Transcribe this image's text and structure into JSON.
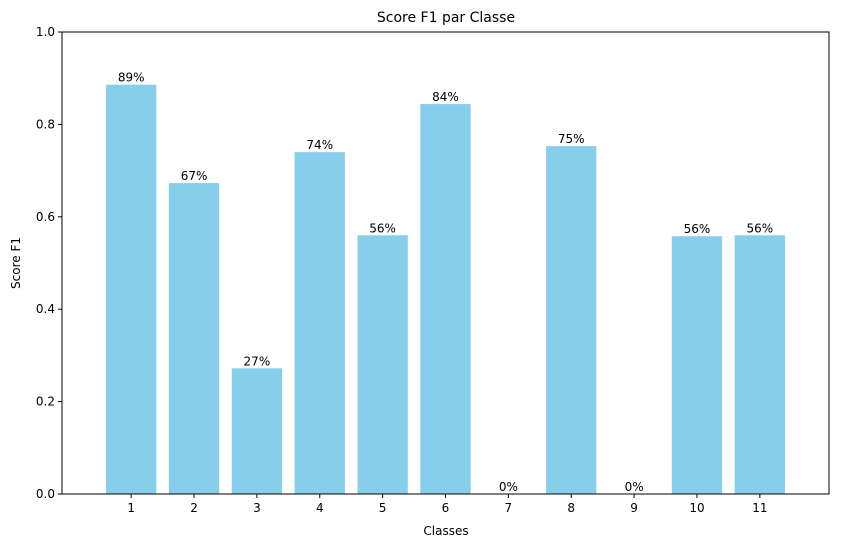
{
  "chart_data": {
    "type": "bar",
    "title": "Score F1 par Classe",
    "xlabel": "Classes",
    "ylabel": "Score F1",
    "categories": [
      "1",
      "2",
      "3",
      "4",
      "5",
      "6",
      "7",
      "8",
      "9",
      "10",
      "11"
    ],
    "values": [
      0.886,
      0.673,
      0.272,
      0.74,
      0.56,
      0.844,
      0.0,
      0.753,
      0.0,
      0.558,
      0.56
    ],
    "data_labels": [
      "89%",
      "67%",
      "27%",
      "74%",
      "56%",
      "84%",
      "0%",
      "75%",
      "0%",
      "56%",
      "56%"
    ],
    "yticks": [
      "0.0",
      "0.2",
      "0.4",
      "0.6",
      "0.8",
      "1.0"
    ],
    "ylim": [
      0,
      1
    ],
    "grid": false,
    "bar_color": "#87ceeb"
  }
}
